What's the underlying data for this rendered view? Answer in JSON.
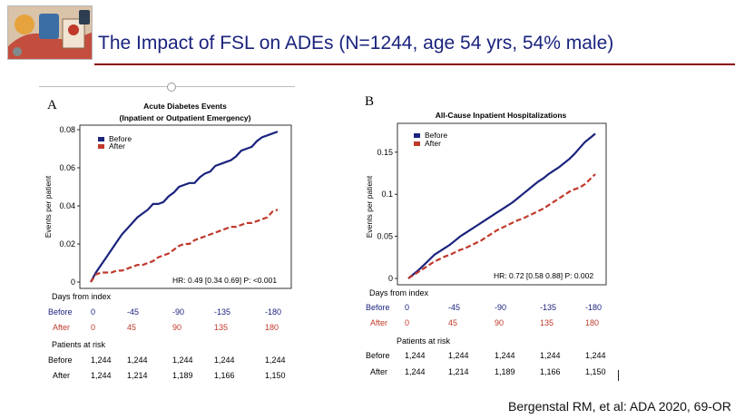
{
  "slide": {
    "title": "The Impact of FSL on ADEs (N=1244, age 54 yrs, 54% male)",
    "citation": "Bergenstal RM, et al: ADA 2020, 69-OR"
  },
  "colors": {
    "before": "#1a237e",
    "after": "#c0392b",
    "title": "#1a237e",
    "rule": "#8b0000"
  },
  "panels": [
    {
      "label": "A",
      "title_line1": "Acute Diabetes Events",
      "title_line2": "(Inpatient or Outpatient Emergency)",
      "ylabel": "Events per patient",
      "yticks": [
        "0",
        "0.02",
        "0.04",
        "0.06",
        "0.08"
      ],
      "hr_text": "HR: 0.49 [0.34 0.69] P: <0.001",
      "legend": [
        "Before",
        "After"
      ],
      "days_label": "Days from index",
      "before_days": [
        "0",
        "-45",
        "-90",
        "-135",
        "-180"
      ],
      "after_days": [
        "0",
        "45",
        "90",
        "135",
        "180"
      ],
      "risk_label": "Patients at risk",
      "before_label": "Before",
      "after_label": "After",
      "before_risk": [
        "1,244",
        "1,244",
        "1,244",
        "1,244",
        "1,244"
      ],
      "after_risk": [
        "1,244",
        "1,214",
        "1,189",
        "1,166",
        "1,150"
      ]
    },
    {
      "label": "B",
      "title_line1": "All-Cause Inpatient Hospitalizations",
      "title_line2": "",
      "ylabel": "Events per patient",
      "yticks": [
        "0",
        "0.05",
        "0.1",
        "0.15"
      ],
      "hr_text": "HR: 0.72 [0.58 0.88] P: 0.002",
      "legend": [
        "Before",
        "After"
      ],
      "days_label": "Days from index",
      "before_days": [
        "0",
        "-45",
        "-90",
        "-135",
        "-180"
      ],
      "after_days": [
        "0",
        "45",
        "90",
        "135",
        "180"
      ],
      "risk_label": "Patients at risk",
      "before_label": "Before",
      "after_label": "After",
      "before_risk": [
        "1,244",
        "1,244",
        "1,244",
        "1,244",
        "1,244"
      ],
      "after_risk": [
        "1,244",
        "1,214",
        "1,189",
        "1,166",
        "1,150"
      ]
    }
  ],
  "chart_data": [
    {
      "type": "line",
      "title": "Acute Diabetes Events (Inpatient or Outpatient Emergency)",
      "xlabel": "Days from index",
      "ylabel": "Events per patient",
      "xlim": [
        0,
        180
      ],
      "ylim": [
        0,
        0.08
      ],
      "series": [
        {
          "name": "Before",
          "x": [
            0,
            5,
            10,
            15,
            20,
            25,
            30,
            35,
            40,
            45,
            50,
            55,
            60,
            65,
            70,
            75,
            80,
            85,
            90,
            95,
            100,
            105,
            110,
            115,
            120,
            125,
            130,
            135,
            140,
            145,
            150,
            155,
            160,
            165,
            170,
            175,
            180
          ],
          "y": [
            0,
            0.005,
            0.009,
            0.013,
            0.017,
            0.021,
            0.025,
            0.028,
            0.031,
            0.034,
            0.036,
            0.038,
            0.041,
            0.041,
            0.042,
            0.045,
            0.047,
            0.05,
            0.051,
            0.052,
            0.052,
            0.055,
            0.057,
            0.058,
            0.061,
            0.062,
            0.063,
            0.064,
            0.066,
            0.069,
            0.07,
            0.071,
            0.074,
            0.076,
            0.077,
            0.078,
            0.079
          ]
        },
        {
          "name": "After",
          "x": [
            0,
            5,
            10,
            15,
            20,
            25,
            30,
            35,
            40,
            45,
            50,
            55,
            60,
            65,
            70,
            75,
            80,
            85,
            90,
            95,
            100,
            105,
            110,
            115,
            120,
            125,
            130,
            135,
            140,
            145,
            150,
            155,
            160,
            165,
            170,
            175,
            180
          ],
          "y": [
            0,
            0.004,
            0.005,
            0.005,
            0.005,
            0.006,
            0.006,
            0.007,
            0.008,
            0.009,
            0.009,
            0.01,
            0.011,
            0.013,
            0.014,
            0.015,
            0.017,
            0.019,
            0.02,
            0.02,
            0.022,
            0.023,
            0.024,
            0.025,
            0.026,
            0.027,
            0.028,
            0.029,
            0.029,
            0.03,
            0.031,
            0.031,
            0.032,
            0.033,
            0.034,
            0.037,
            0.038
          ]
        }
      ]
    },
    {
      "type": "line",
      "title": "All-Cause Inpatient Hospitalizations",
      "xlabel": "Days from index",
      "ylabel": "Events per patient",
      "xlim": [
        0,
        180
      ],
      "ylim": [
        0,
        0.18
      ],
      "series": [
        {
          "name": "Before",
          "x": [
            0,
            5,
            10,
            15,
            20,
            25,
            30,
            35,
            40,
            45,
            50,
            55,
            60,
            65,
            70,
            75,
            80,
            85,
            90,
            95,
            100,
            105,
            110,
            115,
            120,
            125,
            130,
            135,
            140,
            145,
            150,
            155,
            160,
            165,
            170,
            175,
            180
          ],
          "y": [
            0,
            0.005,
            0.01,
            0.016,
            0.022,
            0.028,
            0.032,
            0.036,
            0.04,
            0.045,
            0.05,
            0.054,
            0.058,
            0.062,
            0.066,
            0.07,
            0.074,
            0.078,
            0.082,
            0.086,
            0.09,
            0.095,
            0.1,
            0.105,
            0.11,
            0.115,
            0.119,
            0.124,
            0.128,
            0.132,
            0.137,
            0.142,
            0.148,
            0.155,
            0.162,
            0.167,
            0.172
          ]
        },
        {
          "name": "After",
          "x": [
            0,
            5,
            10,
            15,
            20,
            25,
            30,
            35,
            40,
            45,
            50,
            55,
            60,
            65,
            70,
            75,
            80,
            85,
            90,
            95,
            100,
            105,
            110,
            115,
            120,
            125,
            130,
            135,
            140,
            145,
            150,
            155,
            160,
            165,
            170,
            175,
            180
          ],
          "y": [
            0,
            0.004,
            0.008,
            0.012,
            0.016,
            0.02,
            0.023,
            0.026,
            0.028,
            0.031,
            0.034,
            0.036,
            0.039,
            0.042,
            0.045,
            0.049,
            0.053,
            0.057,
            0.06,
            0.063,
            0.066,
            0.069,
            0.071,
            0.074,
            0.077,
            0.08,
            0.083,
            0.087,
            0.091,
            0.095,
            0.099,
            0.103,
            0.106,
            0.108,
            0.112,
            0.118,
            0.124
          ]
        }
      ]
    }
  ]
}
